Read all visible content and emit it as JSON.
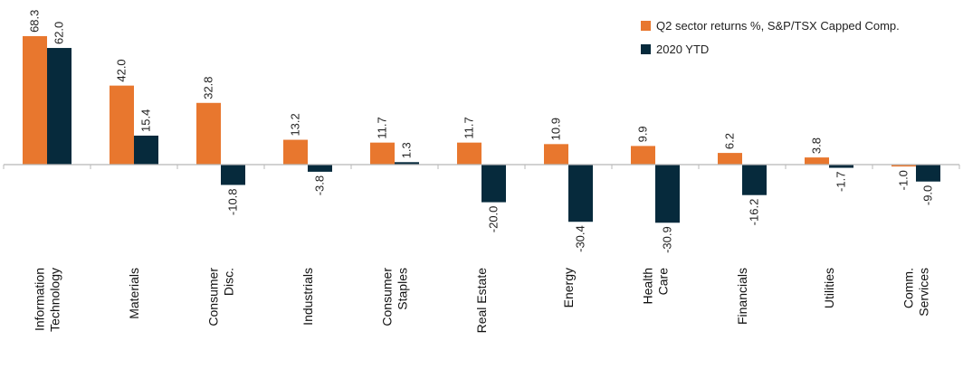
{
  "chart_data": {
    "type": "bar",
    "title": "",
    "xlabel": "",
    "ylabel": "",
    "ylim": [
      -45,
      75
    ],
    "grid": false,
    "legend_position": "top-right",
    "categories": [
      [
        "Information",
        "Technology"
      ],
      [
        "Materials"
      ],
      [
        "Consumer",
        "Disc."
      ],
      [
        "Industrials"
      ],
      [
        "Consumer",
        "Staples"
      ],
      [
        "Real Estate"
      ],
      [
        "Energy"
      ],
      [
        "Health",
        "Care"
      ],
      [
        "Financials"
      ],
      [
        "Utilities"
      ],
      [
        "Comm.",
        "Services"
      ]
    ],
    "series": [
      {
        "name": "Q2 sector returns %, S&P/TSX Capped Comp.",
        "color": "#E8772E",
        "values": [
          68.3,
          42.0,
          32.8,
          13.2,
          11.7,
          11.7,
          10.9,
          9.9,
          6.2,
          3.8,
          -1.0
        ],
        "labels": [
          "68.3",
          "42.0",
          "32.8",
          "13.2",
          "11.7",
          "11.7",
          "10.9",
          "9.9",
          "6.2",
          "3.8",
          "-1.0"
        ]
      },
      {
        "name": "2020 YTD",
        "color": "#062A3C",
        "values": [
          62.0,
          15.4,
          -10.8,
          -3.8,
          1.3,
          -20.0,
          -30.4,
          -30.9,
          -16.2,
          -1.7,
          -9.0
        ],
        "labels": [
          "62.0",
          "15.4",
          "-10.8",
          "-3.8",
          "1.3",
          "-20.0",
          "-30.4",
          "-30.9",
          "-16.2",
          "-1.7",
          "-9.0"
        ]
      }
    ]
  }
}
